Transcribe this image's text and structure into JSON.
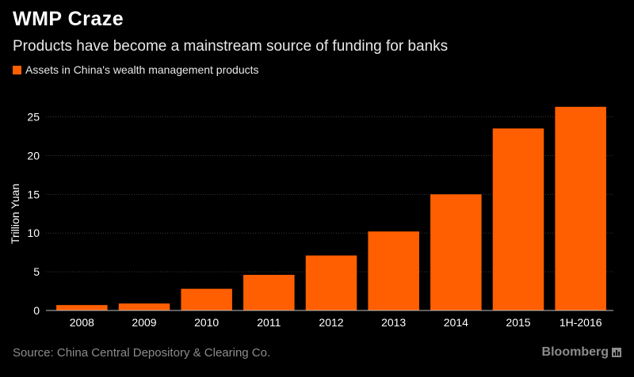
{
  "header": {
    "title": "WMP Craze",
    "subtitle": "Products have become a mainstream source of funding for banks"
  },
  "legend": {
    "label": "Assets in China's wealth management products"
  },
  "footer": {
    "source": "Source: China Central Depository & Clearing Co.",
    "brand": "Bloomberg"
  },
  "colors": {
    "bar": "#ff5f00",
    "background": "#000000",
    "grid": "#3a3a3a",
    "axis_text": "#ffffff"
  },
  "chart_data": {
    "type": "bar",
    "categories": [
      "2008",
      "2009",
      "2010",
      "2011",
      "2012",
      "2013",
      "2014",
      "2015",
      "1H-2016"
    ],
    "series": [
      {
        "name": "Assets in China's wealth management products",
        "values": [
          0.7,
          0.9,
          2.8,
          4.6,
          7.1,
          10.2,
          15.0,
          23.5,
          26.3
        ]
      }
    ],
    "ylabel": "Trillion Yuan",
    "xlabel": "",
    "ylim": [
      0,
      27
    ],
    "yticks": [
      0,
      5,
      10,
      15,
      20,
      25
    ],
    "grid": true
  }
}
